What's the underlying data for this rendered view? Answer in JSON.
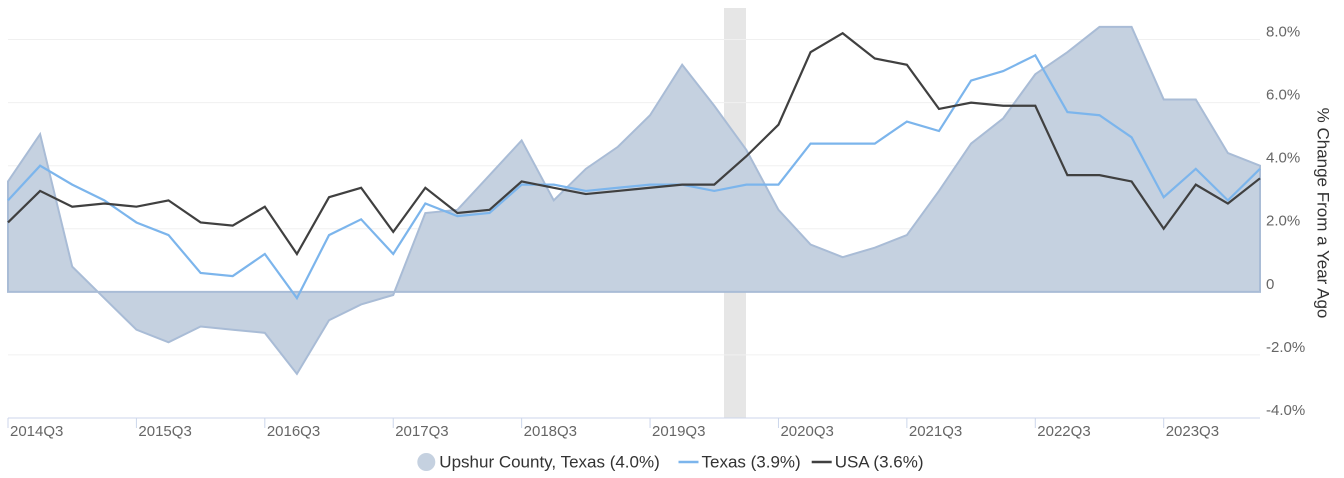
{
  "chart_data": {
    "type": "area-line",
    "y_axis_label": "% Change From a Year Ago",
    "categories": [
      "2014Q3",
      null,
      null,
      null,
      "2015Q3",
      null,
      null,
      null,
      "2016Q3",
      null,
      null,
      null,
      "2017Q3",
      null,
      null,
      null,
      "2018Q3",
      null,
      null,
      null,
      "2019Q3",
      null,
      null,
      null,
      "2020Q3",
      null,
      null,
      null,
      "2021Q3",
      null,
      null,
      null,
      "2022Q3",
      null,
      null,
      null,
      "2023Q3",
      null,
      null,
      null
    ],
    "series": [
      {
        "name": "Upshur County, Texas (4.0%)",
        "type": "area",
        "color": "#c5d1e0",
        "values": [
          3.5,
          5.0,
          0.8,
          -0.2,
          -1.2,
          -1.6,
          -1.1,
          -1.2,
          -1.3,
          -2.6,
          -0.9,
          -0.4,
          -0.1,
          2.5,
          2.6,
          3.7,
          4.8,
          2.9,
          3.9,
          4.6,
          5.6,
          7.2,
          5.9,
          4.5,
          2.6,
          1.5,
          1.1,
          1.4,
          1.8,
          3.2,
          4.7,
          5.5,
          6.9,
          7.6,
          8.4,
          8.4,
          6.1,
          6.1,
          4.4,
          4.0
        ]
      },
      {
        "name": "Texas (3.9%)",
        "type": "line",
        "color": "#7cb5ec",
        "values": [
          2.9,
          4.0,
          3.4,
          2.9,
          2.2,
          1.8,
          0.6,
          0.5,
          1.2,
          -0.2,
          1.8,
          2.3,
          1.2,
          2.8,
          2.4,
          2.5,
          3.4,
          3.4,
          3.2,
          3.3,
          3.4,
          3.4,
          3.2,
          3.4,
          3.4,
          4.7,
          4.7,
          4.7,
          5.4,
          5.1,
          6.7,
          7.0,
          7.5,
          5.7,
          5.6,
          4.9,
          3.0,
          3.9,
          2.9,
          3.9
        ]
      },
      {
        "name": "USA (3.6%)",
        "type": "line",
        "color": "#404040",
        "values": [
          2.2,
          3.2,
          2.7,
          2.8,
          2.7,
          2.9,
          2.2,
          2.1,
          2.7,
          1.2,
          3.0,
          3.3,
          1.9,
          3.3,
          2.5,
          2.6,
          3.5,
          3.3,
          3.1,
          3.2,
          3.3,
          3.4,
          3.4,
          4.3,
          5.3,
          7.6,
          8.2,
          7.4,
          7.2,
          5.8,
          6.0,
          5.9,
          5.9,
          3.7,
          3.7,
          3.5,
          2.0,
          3.4,
          2.8,
          3.6
        ]
      }
    ],
    "ylim": [
      -4,
      9
    ],
    "yticks": [
      {
        "value": -4,
        "label": "-4.0%"
      },
      {
        "value": -2,
        "label": "-2.0%"
      },
      0,
      {
        "value": 2,
        "label": "2.0%"
      },
      {
        "value": 4,
        "label": "4.0%"
      },
      {
        "value": 6,
        "label": "6.0%"
      },
      {
        "value": 8,
        "label": "8.0%"
      }
    ],
    "grid": true,
    "legend": "bottom"
  }
}
